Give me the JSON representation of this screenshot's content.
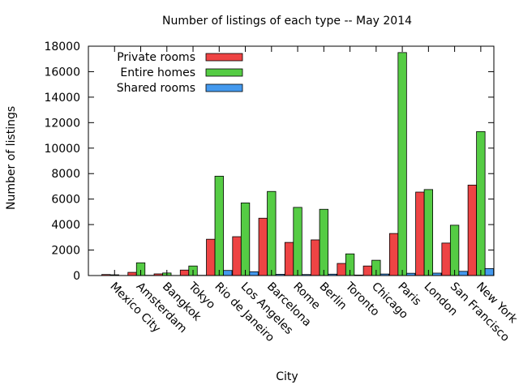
{
  "chart_data": {
    "type": "bar",
    "title": "Number of listings of each type -- May 2014",
    "xlabel": "City",
    "ylabel": "Number of listings",
    "ylim": [
      0,
      18000
    ],
    "yticks": [
      0,
      2000,
      4000,
      6000,
      8000,
      10000,
      12000,
      14000,
      16000,
      18000
    ],
    "grid": false,
    "legend_position": "top-left",
    "categories": [
      "Mexico City",
      "Amsterdam",
      "Bangkok",
      "Tokyo",
      "Rio de Janeiro",
      "Los Angeles",
      "Barcelona",
      "Rome",
      "Berlin",
      "Toronto",
      "Chicago",
      "Paris",
      "London",
      "San Francisco",
      "New York"
    ],
    "series": [
      {
        "name": "Private rooms",
        "color": "#ee4444",
        "values": [
          80,
          250,
          130,
          430,
          2850,
          3050,
          4500,
          2600,
          2800,
          950,
          750,
          3300,
          6550,
          2550,
          7100
        ]
      },
      {
        "name": "Entire homes",
        "color": "#55cc44",
        "values": [
          60,
          1000,
          200,
          750,
          7800,
          5700,
          6600,
          5350,
          5200,
          1700,
          1200,
          17500,
          6750,
          3950,
          11300
        ]
      },
      {
        "name": "Shared rooms",
        "color": "#4499ee",
        "values": [
          10,
          20,
          10,
          20,
          400,
          300,
          100,
          80,
          110,
          40,
          120,
          180,
          190,
          330,
          550
        ]
      }
    ]
  }
}
